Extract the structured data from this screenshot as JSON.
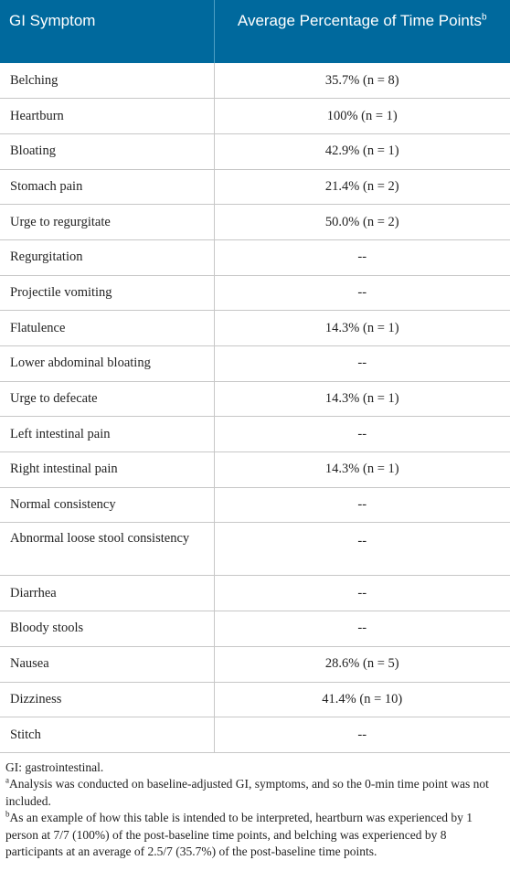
{
  "table": {
    "header": {
      "col1": "GI Symptom",
      "col2": "Average Percentage of Time Points",
      "col2_sup": "b"
    },
    "rows": [
      {
        "symptom": "Belching",
        "value": "35.7% (n = 8)"
      },
      {
        "symptom": "Heartburn",
        "value": "100% (n = 1)"
      },
      {
        "symptom": "Bloating",
        "value": "42.9% (n = 1)"
      },
      {
        "symptom": "Stomach pain",
        "value": "21.4% (n = 2)"
      },
      {
        "symptom": "Urge to regurgitate",
        "value": "50.0% (n = 2)"
      },
      {
        "symptom": "Regurgitation",
        "value": "--"
      },
      {
        "symptom": "Projectile vomiting",
        "value": "--"
      },
      {
        "symptom": "Flatulence",
        "value": "14.3% (n = 1)"
      },
      {
        "symptom": "Lower abdominal bloating",
        "value": "--"
      },
      {
        "symptom": "Urge to defecate",
        "value": "14.3% (n = 1)"
      },
      {
        "symptom": "Left intestinal pain",
        "value": "--"
      },
      {
        "symptom": "Right intestinal pain",
        "value": "14.3% (n = 1)"
      },
      {
        "symptom": "Normal consistency",
        "value": "--"
      },
      {
        "symptom": "Abnormal loose stool consistency",
        "value": "--"
      },
      {
        "symptom": "Diarrhea",
        "value": "--"
      },
      {
        "symptom": "Bloody stools",
        "value": "--"
      },
      {
        "symptom": "Nausea",
        "value": "28.6% (n = 5)"
      },
      {
        "symptom": "Dizziness",
        "value": "41.4% (n = 10)"
      },
      {
        "symptom": "Stitch",
        "value": "--"
      }
    ]
  },
  "footnotes": {
    "abbrev": "GI: gastrointestinal.",
    "a_mark": "a",
    "a_text": "Analysis was conducted on baseline-adjusted GI, symptoms, and so the 0-min time point was not included.",
    "b_mark": "b",
    "b_text": "As an example of how this table is intended to be interpreted, heartburn was experienced by 1 person at 7/7 (100%) of the post-baseline time points, and belching was experienced by 8 participants at an average of 2.5/7 (35.7%) of the post-baseline time points."
  },
  "colors": {
    "header_bg": "#00699d",
    "header_text": "#ffffff",
    "grid_line": "#c7c7c7",
    "body_text": "#222222"
  }
}
